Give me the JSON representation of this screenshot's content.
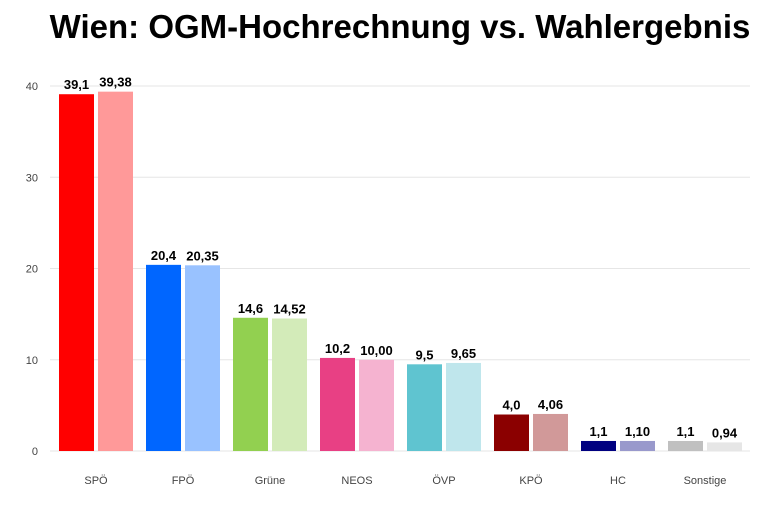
{
  "chart_data": {
    "type": "bar",
    "title": "Wien: OGM-Hochrechnung vs. Wahlergebnis",
    "categories": [
      "SPÖ",
      "FPÖ",
      "Grüne",
      "NEOS",
      "ÖVP",
      "KPÖ",
      "HC",
      "Sonstige"
    ],
    "series": [
      {
        "values": [
          39.1,
          20.4,
          14.6,
          10.2,
          9.5,
          4.0,
          1.1,
          1.1
        ],
        "labels": [
          "39,1",
          "20,4",
          "14,6",
          "10,2",
          "9,5",
          "4,0",
          "1,1",
          "1,1"
        ],
        "colors": [
          "#ff0000",
          "#0066ff",
          "#92d050",
          "#e84084",
          "#5fc4d0",
          "#8b0000",
          "#000080",
          "#c0c0c0"
        ]
      },
      {
        "values": [
          39.38,
          20.35,
          14.52,
          10.0,
          9.65,
          4.06,
          1.1,
          0.94
        ],
        "labels": [
          "39,38",
          "20,35",
          "14,52",
          "10,00",
          "9,65",
          "4,06",
          "1,10",
          "0,94"
        ],
        "colors": [
          "#ff9999",
          "#99c2ff",
          "#d3ebb9",
          "#f5b3d0",
          "#bfe6ec",
          "#d19999",
          "#9999cc",
          "#e6e6e6"
        ]
      }
    ],
    "yticks": [
      0,
      10,
      20,
      30,
      40
    ],
    "ylim": [
      0,
      40
    ],
    "xlabel": "",
    "ylabel": "",
    "grid": true,
    "legend": "none"
  }
}
